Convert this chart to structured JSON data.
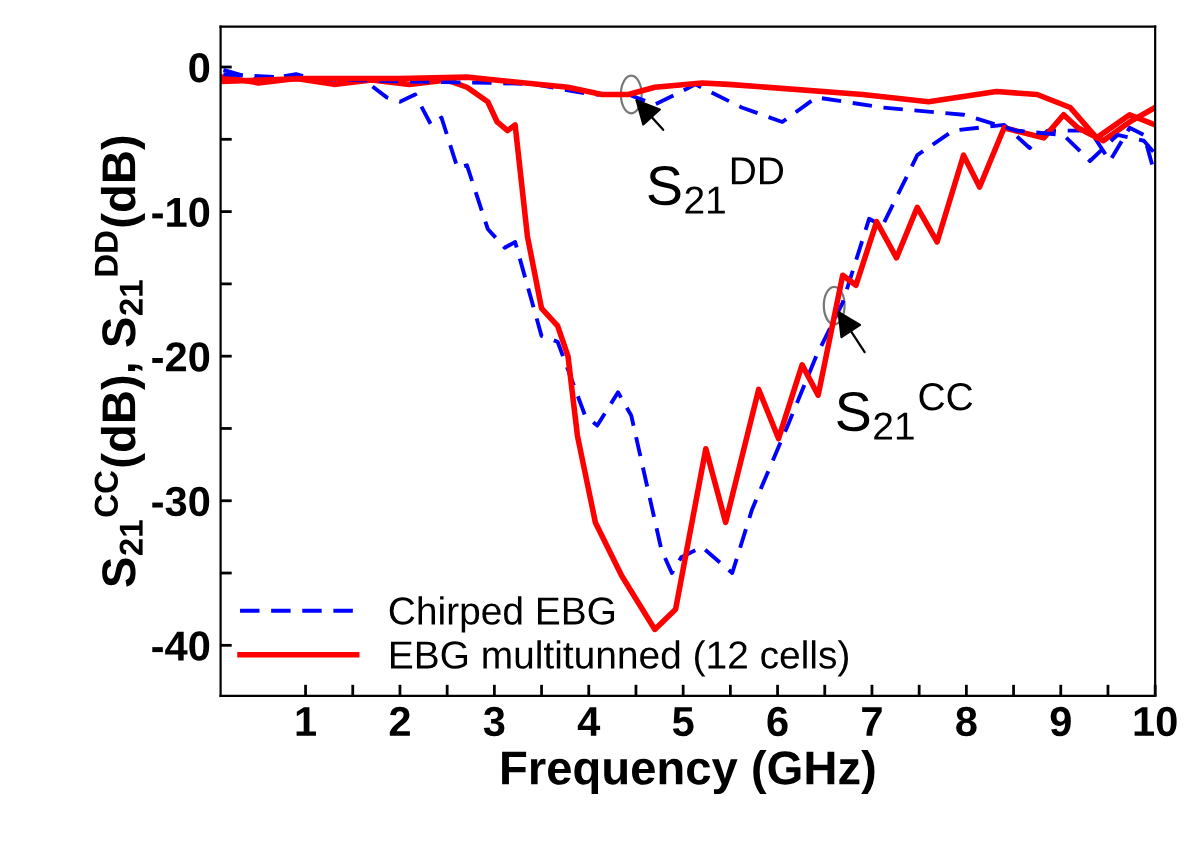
{
  "chart_data": {
    "type": "line",
    "xlabel": "Frequency (GHz)",
    "ylabel": "S$_{21}$$^{CC}$(dB), S$_{21}$$^{DD}$(dB)",
    "xlim": [
      0.1,
      10
    ],
    "ylim": [
      -43.5,
      2.8
    ],
    "xticks": [
      1,
      {
        "value": 1.5,
        "label": null
      },
      2,
      {
        "value": 2.5,
        "label": null
      },
      3,
      {
        "value": 3.5,
        "label": null
      },
      4,
      {
        "value": 4.5,
        "label": null
      },
      5,
      {
        "value": 5.5,
        "label": null
      },
      6,
      {
        "value": 6.5,
        "label": null
      },
      7,
      {
        "value": 7.5,
        "label": null
      },
      8,
      {
        "value": 8.5,
        "label": null
      },
      9,
      {
        "value": 9.5,
        "label": null
      },
      10
    ],
    "yticks": [
      -40,
      {
        "value": -35,
        "label": null
      },
      -30,
      {
        "value": -25,
        "label": null
      },
      -20,
      {
        "value": -15,
        "label": null
      },
      -10,
      {
        "value": -5,
        "label": null
      },
      0
    ],
    "grid": false,
    "legend": "bottom left",
    "marker": "none",
    "annotations": [
      {
        "text": "S$_{21}$$^{DD}$",
        "x": 4.45,
        "y": -1.9
      },
      {
        "text": "S$_{21}$$^{CC}$",
        "x": 6.6,
        "y": -16.5
      }
    ],
    "series": [
      {
        "name": "Chirped EBG",
        "color": "#0000ff",
        "line_style": "dashed",
        "x": [
          0.13,
          0.5,
          0.9,
          1.3,
          1.6,
          1.86,
          2.0,
          2.16,
          2.33,
          2.44,
          2.61,
          2.71,
          2.93,
          3.11,
          3.22,
          3.5,
          3.67,
          3.96,
          4.09,
          4.31,
          4.45,
          4.77,
          4.88,
          4.98,
          5.2,
          5.52,
          5.73,
          6.12,
          6.41,
          6.69,
          6.97,
          7.11,
          7.48,
          7.86,
          8.4,
          8.67,
          8.86,
          9.31,
          9.52,
          9.73,
          9.88,
          10.0
        ],
        "values": [
          -0.2,
          -0.9,
          -0.5,
          -1.2,
          -0.8,
          -2.1,
          -2.4,
          -1.9,
          -4.0,
          -3.5,
          -7.0,
          -6.8,
          -11.2,
          -12.5,
          -12.1,
          -18.6,
          -19.0,
          -24.1,
          -24.8,
          -22.5,
          -24.1,
          -33.4,
          -35.0,
          -33.9,
          -33.2,
          -35.0,
          -30.6,
          -24.6,
          -20.0,
          -16.3,
          -10.5,
          -11.0,
          -6.1,
          -4.4,
          -4.0,
          -5.6,
          -4.4,
          -4.4,
          -6.5,
          -4.2,
          -4.7,
          -7.5
        ]
      },
      {
        "name": "EBG multitunned (12 cells)",
        "color": "#ff0000",
        "line_style": "solid",
        "x": [
          0.13,
          0.5,
          0.9,
          1.3,
          1.7,
          2.1,
          2.5,
          2.71,
          2.93,
          3.03,
          3.14,
          3.22,
          3.35,
          3.5,
          3.67,
          3.78,
          3.88,
          4.07,
          4.35,
          4.7,
          4.92,
          5.24,
          5.45,
          5.8,
          6.01,
          6.26,
          6.43,
          6.69,
          6.83,
          7.05,
          7.26,
          7.48,
          7.69,
          7.97,
          8.14,
          8.4,
          8.82,
          9.03,
          9.18,
          9.45,
          9.73,
          10.0
        ],
        "values": [
          -0.7,
          -1.1,
          -0.8,
          -1.2,
          -0.9,
          -1.2,
          -0.9,
          -1.4,
          -2.4,
          -3.8,
          -4.4,
          -4.0,
          -11.7,
          -16.7,
          -17.9,
          -20.0,
          -25.5,
          -31.5,
          -35.2,
          -38.9,
          -37.5,
          -26.4,
          -31.5,
          -22.3,
          -25.7,
          -20.6,
          -22.7,
          -14.4,
          -15.1,
          -10.7,
          -13.2,
          -9.7,
          -12.1,
          -6.1,
          -8.3,
          -4.2,
          -4.9,
          -3.3,
          -4.2,
          -5.1,
          -3.8,
          -2.8
        ]
      },
      {
        "color": "#0000ff",
        "line_style": "dashed",
        "x": [
          0.13,
          1.0,
          2.0,
          3.0,
          3.43,
          4.03,
          4.42,
          4.7,
          4.92,
          5.13,
          5.62,
          6.05,
          6.41,
          7.11,
          7.97,
          8.53,
          9.03,
          9.31,
          9.6,
          9.88,
          10.0
        ],
        "values": [
          -0.5,
          -0.8,
          -1.0,
          -1.1,
          -1.2,
          -1.9,
          -1.9,
          -2.6,
          -1.9,
          -1.2,
          -2.8,
          -3.8,
          -2.1,
          -2.8,
          -3.3,
          -4.4,
          -4.7,
          -6.5,
          -4.7,
          -5.1,
          -6.0
        ]
      },
      {
        "color": "#ff0000",
        "line_style": "solid",
        "x": [
          0.13,
          1.0,
          2.0,
          2.71,
          3.78,
          4.14,
          4.42,
          4.7,
          5.2,
          5.48,
          6.9,
          7.6,
          8.32,
          8.75,
          9.1,
          9.38,
          9.73,
          10.0
        ],
        "values": [
          -1.0,
          -0.8,
          -0.8,
          -0.7,
          -1.4,
          -1.9,
          -1.9,
          -1.4,
          -1.1,
          -1.2,
          -1.9,
          -2.4,
          -1.7,
          -1.9,
          -2.8,
          -4.9,
          -3.3,
          -4.0
        ]
      }
    ]
  }
}
